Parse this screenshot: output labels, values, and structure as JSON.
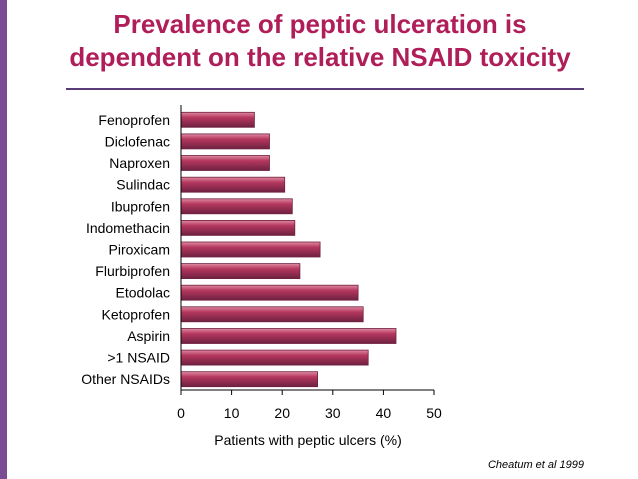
{
  "slide": {
    "title_line1": "Prevalence of peptic ulceration is",
    "title_line2": "dependent on the relative NSAID toxicity",
    "citation": "Cheatum et al 1999"
  },
  "colors": {
    "title": "#b01e5a",
    "accent_bar": "#7b4b93",
    "rule": "#5a3b7a",
    "bar_fill": "#b5375f",
    "bar_highlight": "#e08aa3",
    "bar_border": "#6e2140"
  },
  "chart_data": {
    "type": "bar",
    "orientation": "horizontal",
    "categories": [
      "Fenoprofen",
      "Diclofenac",
      "Naproxen",
      "Sulindac",
      "Ibuprofen",
      "Indomethacin",
      "Piroxicam",
      "Flurbiprofen",
      "Etodolac",
      "Ketoprofen",
      "Aspirin",
      ">1 NSAID",
      "Other NSAIDs"
    ],
    "values": [
      14.5,
      17.5,
      17.5,
      20.5,
      22.0,
      22.5,
      27.5,
      23.5,
      35.0,
      36.0,
      42.5,
      37.0,
      27.0
    ],
    "xlabel": "Patients with peptic ulcers (%)",
    "xlim": [
      0,
      50
    ],
    "xticks": [
      0,
      10,
      20,
      30,
      40,
      50
    ],
    "grid": false,
    "legend": "none"
  }
}
